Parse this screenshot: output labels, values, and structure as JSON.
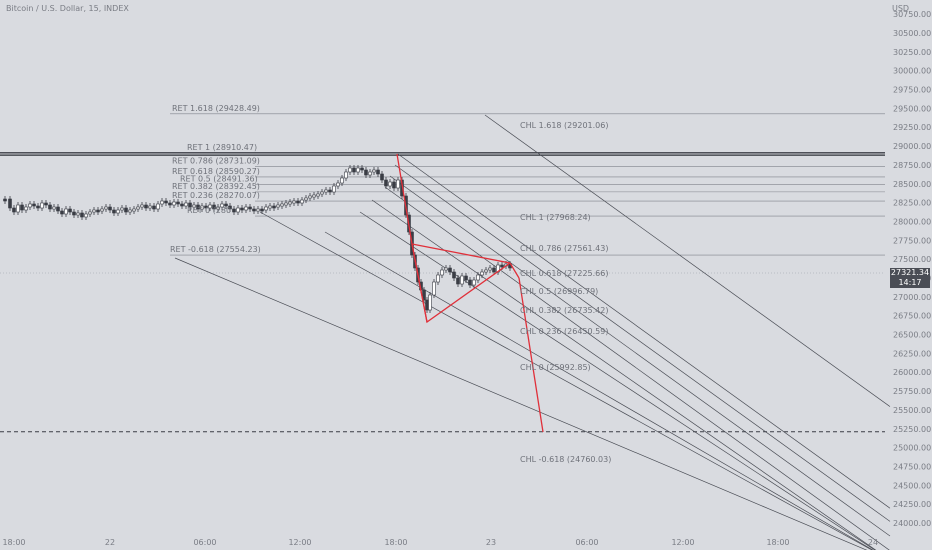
{
  "title": "Bitcoin / U.S. Dollar, 15, INDEX",
  "currency": "USD",
  "current_price": "27321.34",
  "countdown": "14:17",
  "colors": {
    "background": "#d9dbe0",
    "candle_up": "#3a3d45",
    "candle_down": "#3a3d45",
    "line": "#6f727a",
    "pattern": "#e0303a"
  },
  "chart_data": {
    "type": "candlestick",
    "ylim": [
      24000,
      30750
    ],
    "y_ticks": [
      24000,
      24250,
      24500,
      24750,
      25000,
      25250,
      25500,
      25750,
      26000,
      26250,
      26500,
      26750,
      27000,
      27250,
      27500,
      27750,
      28000,
      28250,
      28500,
      28750,
      29000,
      29250,
      29500,
      29750,
      30000,
      30250,
      30500,
      30750
    ],
    "y_tick_labels": [
      "24000.00",
      "24250.00",
      "24500.00",
      "24750.00",
      "25000.00",
      "25250.00",
      "25500.00",
      "25750.00",
      "26000.00",
      "26250.00",
      "26500.00",
      "26750.00",
      "27000.00",
      "27250.00",
      "27500.00",
      "27750.00",
      "28000.00",
      "28250.00",
      "28500.00",
      "28750.00",
      "29000.00",
      "29250.00",
      "29500.00",
      "29750.00",
      "30000.00",
      "30250.00",
      "30500.00",
      "30750.00"
    ],
    "x_tick_labels": [
      "18:00",
      "22",
      "06:00",
      "12:00",
      "18:00",
      "23",
      "06:00",
      "12:00",
      "18:00",
      "24"
    ],
    "retracement_levels": [
      {
        "label": "RET 1.618 (29428.49)",
        "value": 29428.49
      },
      {
        "label": "RET 1 (28910.47)",
        "value": 28910.47
      },
      {
        "label": "RET 0.786 (28731.09)",
        "value": 28731.09
      },
      {
        "label": "RET 0.618 (28590.27)",
        "value": 28590.27
      },
      {
        "label": "RET 0.5 (28491.36)",
        "value": 28491.36
      },
      {
        "label": "RET 0.382 (28392.45)",
        "value": 28392.45
      },
      {
        "label": "RET 0.236 (28270.07)",
        "value": 28270.07
      },
      {
        "label": "RET 0 (280",
        "value": 28072.25
      },
      {
        "label": "RET -0.618 (27554.23)",
        "value": 27554.23
      }
    ],
    "channel_levels": [
      {
        "label": "CHL 1.618 (29201.06)",
        "value": 29201.06
      },
      {
        "label": "CHL 1 (27968.24)",
        "value": 27968.24
      },
      {
        "label": "CHL 0.786 (27561.43)",
        "value": 27561.43
      },
      {
        "label": "CHL 0.618 (27225.66)",
        "value": 27225.66
      },
      {
        "label": "CHL 0.5 (26996.79)",
        "value": 26996.79
      },
      {
        "label": "CHL 0.382 (26735.42)",
        "value": 26735.42
      },
      {
        "label": "CHL 0.236 (26450.59)",
        "value": 26450.59
      },
      {
        "label": "CHL 0 (25992.85)",
        "value": 25992.85
      },
      {
        "label": "CHL -0.618 (24760.03)",
        "value": 24760.03
      }
    ],
    "horizontal_solid": 28880,
    "horizontal_dashed": 25210
  }
}
